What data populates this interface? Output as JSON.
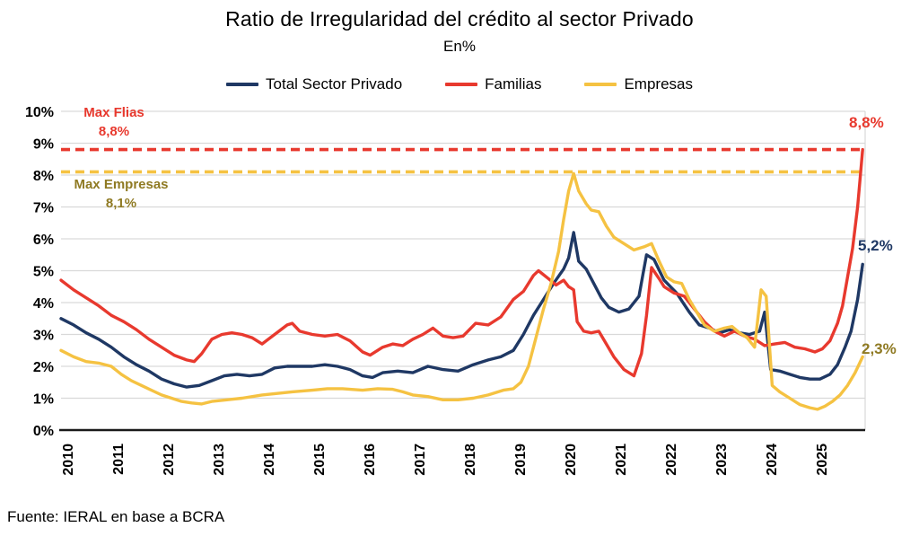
{
  "title": "Ratio de Irregularidad del crédito al sector Privado",
  "subtitle": "En%",
  "source": "Fuente: IERAL en base a BCRA",
  "colors": {
    "total": "#1f3864",
    "familias": "#e8392e",
    "empresas": "#f5c242",
    "empresas_dark": "#8f7a23",
    "grid": "#d9d9d9",
    "axis": "#1a1a1a"
  },
  "legend": [
    {
      "label": "Total Sector Privado",
      "color": "#1f3864"
    },
    {
      "label": "Familias",
      "color": "#e8392e"
    },
    {
      "label": "Empresas",
      "color": "#f5c242"
    }
  ],
  "annotations": {
    "max_flias": {
      "line1": "Max Flias",
      "line2": "8,8%",
      "color": "#e8392e"
    },
    "max_empresas": {
      "line1": "Max Empresas",
      "line2": "8,1%",
      "color": "#8f7a23"
    },
    "end_labels": [
      {
        "text": "8,8%",
        "color": "#e8392e",
        "series": "Familias"
      },
      {
        "text": "5,2%",
        "color": "#1f3864",
        "series": "Total Sector Privado"
      },
      {
        "text": "2,3%",
        "color": "#8f7a23",
        "series": "Empresas"
      }
    ]
  },
  "chart_data": {
    "type": "line",
    "title": "Ratio de Irregularidad del crédito al sector Privado",
    "ylabel": "En%",
    "ylim": [
      0,
      10
    ],
    "y_ticks": [
      "0%",
      "1%",
      "2%",
      "3%",
      "4%",
      "5%",
      "6%",
      "7%",
      "8%",
      "9%",
      "10%"
    ],
    "x_ticks": [
      "2010",
      "2011",
      "2012",
      "2013",
      "2014",
      "2015",
      "2016",
      "2017",
      "2018",
      "2019",
      "2020",
      "2021",
      "2022",
      "2023",
      "2024",
      "2025"
    ],
    "grid": true,
    "legend_position": "top",
    "reference_lines": [
      {
        "name": "Max Flias",
        "value": 8.8,
        "color": "#e8392e",
        "style": "dashed"
      },
      {
        "name": "Max Empresas",
        "value": 8.1,
        "color": "#f5c242",
        "style": "dashed"
      }
    ],
    "series": [
      {
        "name": "Total Sector Privado",
        "color": "#1f3864",
        "points": [
          [
            2010.0,
            3.5
          ],
          [
            2010.25,
            3.3
          ],
          [
            2010.5,
            3.05
          ],
          [
            2010.75,
            2.85
          ],
          [
            2011.0,
            2.6
          ],
          [
            2011.25,
            2.3
          ],
          [
            2011.5,
            2.05
          ],
          [
            2011.75,
            1.85
          ],
          [
            2012.0,
            1.6
          ],
          [
            2012.25,
            1.45
          ],
          [
            2012.5,
            1.35
          ],
          [
            2012.75,
            1.4
          ],
          [
            2013.0,
            1.55
          ],
          [
            2013.25,
            1.7
          ],
          [
            2013.5,
            1.75
          ],
          [
            2013.75,
            1.7
          ],
          [
            2014.0,
            1.75
          ],
          [
            2014.25,
            1.95
          ],
          [
            2014.5,
            2.0
          ],
          [
            2014.75,
            2.0
          ],
          [
            2015.0,
            2.0
          ],
          [
            2015.25,
            2.05
          ],
          [
            2015.5,
            2.0
          ],
          [
            2015.75,
            1.9
          ],
          [
            2016.0,
            1.7
          ],
          [
            2016.2,
            1.65
          ],
          [
            2016.4,
            1.8
          ],
          [
            2016.7,
            1.85
          ],
          [
            2017.0,
            1.8
          ],
          [
            2017.3,
            2.0
          ],
          [
            2017.6,
            1.9
          ],
          [
            2017.9,
            1.85
          ],
          [
            2018.2,
            2.05
          ],
          [
            2018.5,
            2.2
          ],
          [
            2018.75,
            2.3
          ],
          [
            2019.0,
            2.5
          ],
          [
            2019.2,
            3.0
          ],
          [
            2019.4,
            3.6
          ],
          [
            2019.6,
            4.1
          ],
          [
            2019.8,
            4.6
          ],
          [
            2020.0,
            5.05
          ],
          [
            2020.1,
            5.4
          ],
          [
            2020.2,
            6.2
          ],
          [
            2020.3,
            5.3
          ],
          [
            2020.45,
            5.05
          ],
          [
            2020.6,
            4.6
          ],
          [
            2020.75,
            4.15
          ],
          [
            2020.9,
            3.85
          ],
          [
            2021.1,
            3.7
          ],
          [
            2021.3,
            3.8
          ],
          [
            2021.5,
            4.2
          ],
          [
            2021.58,
            4.9
          ],
          [
            2021.65,
            5.5
          ],
          [
            2021.8,
            5.35
          ],
          [
            2022.0,
            4.7
          ],
          [
            2022.25,
            4.3
          ],
          [
            2022.5,
            3.7
          ],
          [
            2022.7,
            3.3
          ],
          [
            2022.9,
            3.2
          ],
          [
            2023.1,
            3.05
          ],
          [
            2023.3,
            3.15
          ],
          [
            2023.5,
            3.05
          ],
          [
            2023.7,
            3.0
          ],
          [
            2023.9,
            3.1
          ],
          [
            2024.0,
            3.7
          ],
          [
            2024.12,
            1.9
          ],
          [
            2024.3,
            1.85
          ],
          [
            2024.5,
            1.75
          ],
          [
            2024.7,
            1.65
          ],
          [
            2024.9,
            1.6
          ],
          [
            2025.1,
            1.6
          ],
          [
            2025.3,
            1.75
          ],
          [
            2025.45,
            2.05
          ],
          [
            2025.6,
            2.6
          ],
          [
            2025.72,
            3.1
          ],
          [
            2025.85,
            4.1
          ],
          [
            2025.95,
            5.2
          ]
        ]
      },
      {
        "name": "Familias",
        "color": "#e8392e",
        "points": [
          [
            2010.0,
            4.7
          ],
          [
            2010.25,
            4.4
          ],
          [
            2010.5,
            4.15
          ],
          [
            2010.75,
            3.9
          ],
          [
            2011.0,
            3.6
          ],
          [
            2011.25,
            3.4
          ],
          [
            2011.5,
            3.15
          ],
          [
            2011.75,
            2.85
          ],
          [
            2012.0,
            2.6
          ],
          [
            2012.25,
            2.35
          ],
          [
            2012.5,
            2.2
          ],
          [
            2012.65,
            2.15
          ],
          [
            2012.8,
            2.4
          ],
          [
            2013.0,
            2.85
          ],
          [
            2013.2,
            3.0
          ],
          [
            2013.4,
            3.05
          ],
          [
            2013.6,
            3.0
          ],
          [
            2013.8,
            2.9
          ],
          [
            2014.0,
            2.7
          ],
          [
            2014.25,
            3.0
          ],
          [
            2014.5,
            3.3
          ],
          [
            2014.6,
            3.35
          ],
          [
            2014.75,
            3.1
          ],
          [
            2015.0,
            3.0
          ],
          [
            2015.25,
            2.95
          ],
          [
            2015.5,
            3.0
          ],
          [
            2015.75,
            2.8
          ],
          [
            2016.0,
            2.45
          ],
          [
            2016.15,
            2.35
          ],
          [
            2016.4,
            2.6
          ],
          [
            2016.6,
            2.7
          ],
          [
            2016.8,
            2.65
          ],
          [
            2017.0,
            2.85
          ],
          [
            2017.2,
            3.0
          ],
          [
            2017.4,
            3.2
          ],
          [
            2017.6,
            2.95
          ],
          [
            2017.8,
            2.9
          ],
          [
            2018.0,
            2.95
          ],
          [
            2018.25,
            3.35
          ],
          [
            2018.5,
            3.3
          ],
          [
            2018.75,
            3.55
          ],
          [
            2019.0,
            4.1
          ],
          [
            2019.2,
            4.35
          ],
          [
            2019.4,
            4.85
          ],
          [
            2019.5,
            5.0
          ],
          [
            2019.7,
            4.75
          ],
          [
            2019.85,
            4.55
          ],
          [
            2020.0,
            4.7
          ],
          [
            2020.1,
            4.5
          ],
          [
            2020.2,
            4.4
          ],
          [
            2020.27,
            3.4
          ],
          [
            2020.4,
            3.1
          ],
          [
            2020.55,
            3.05
          ],
          [
            2020.7,
            3.1
          ],
          [
            2020.85,
            2.7
          ],
          [
            2021.0,
            2.3
          ],
          [
            2021.2,
            1.9
          ],
          [
            2021.4,
            1.7
          ],
          [
            2021.55,
            2.4
          ],
          [
            2021.65,
            3.6
          ],
          [
            2021.75,
            5.1
          ],
          [
            2021.9,
            4.75
          ],
          [
            2022.0,
            4.5
          ],
          [
            2022.2,
            4.3
          ],
          [
            2022.4,
            4.2
          ],
          [
            2022.6,
            3.8
          ],
          [
            2022.8,
            3.4
          ],
          [
            2023.0,
            3.1
          ],
          [
            2023.2,
            2.95
          ],
          [
            2023.4,
            3.1
          ],
          [
            2023.6,
            2.95
          ],
          [
            2023.8,
            2.85
          ],
          [
            2024.0,
            2.65
          ],
          [
            2024.2,
            2.7
          ],
          [
            2024.4,
            2.75
          ],
          [
            2024.6,
            2.6
          ],
          [
            2024.8,
            2.55
          ],
          [
            2025.0,
            2.45
          ],
          [
            2025.15,
            2.55
          ],
          [
            2025.3,
            2.8
          ],
          [
            2025.45,
            3.35
          ],
          [
            2025.55,
            3.9
          ],
          [
            2025.65,
            4.8
          ],
          [
            2025.75,
            5.7
          ],
          [
            2025.85,
            7.0
          ],
          [
            2025.95,
            8.8
          ]
        ]
      },
      {
        "name": "Empresas",
        "color": "#f5c242",
        "points": [
          [
            2010.0,
            2.5
          ],
          [
            2010.25,
            2.3
          ],
          [
            2010.5,
            2.15
          ],
          [
            2010.75,
            2.1
          ],
          [
            2011.0,
            2.0
          ],
          [
            2011.2,
            1.75
          ],
          [
            2011.4,
            1.55
          ],
          [
            2011.6,
            1.4
          ],
          [
            2011.8,
            1.25
          ],
          [
            2012.0,
            1.1
          ],
          [
            2012.2,
            1.0
          ],
          [
            2012.4,
            0.9
          ],
          [
            2012.6,
            0.85
          ],
          [
            2012.8,
            0.82
          ],
          [
            2013.0,
            0.9
          ],
          [
            2013.3,
            0.95
          ],
          [
            2013.6,
            1.0
          ],
          [
            2014.0,
            1.1
          ],
          [
            2014.3,
            1.15
          ],
          [
            2014.6,
            1.2
          ],
          [
            2015.0,
            1.25
          ],
          [
            2015.3,
            1.3
          ],
          [
            2015.6,
            1.3
          ],
          [
            2016.0,
            1.25
          ],
          [
            2016.3,
            1.3
          ],
          [
            2016.6,
            1.28
          ],
          [
            2016.8,
            1.2
          ],
          [
            2017.0,
            1.1
          ],
          [
            2017.3,
            1.05
          ],
          [
            2017.6,
            0.95
          ],
          [
            2017.9,
            0.95
          ],
          [
            2018.2,
            1.0
          ],
          [
            2018.5,
            1.1
          ],
          [
            2018.8,
            1.25
          ],
          [
            2019.0,
            1.3
          ],
          [
            2019.15,
            1.5
          ],
          [
            2019.3,
            2.0
          ],
          [
            2019.45,
            2.9
          ],
          [
            2019.6,
            3.8
          ],
          [
            2019.75,
            4.6
          ],
          [
            2019.9,
            5.6
          ],
          [
            2020.0,
            6.6
          ],
          [
            2020.1,
            7.5
          ],
          [
            2020.2,
            8.05
          ],
          [
            2020.3,
            7.5
          ],
          [
            2020.45,
            7.1
          ],
          [
            2020.55,
            6.9
          ],
          [
            2020.7,
            6.85
          ],
          [
            2020.85,
            6.4
          ],
          [
            2021.0,
            6.05
          ],
          [
            2021.2,
            5.85
          ],
          [
            2021.4,
            5.65
          ],
          [
            2021.6,
            5.75
          ],
          [
            2021.75,
            5.85
          ],
          [
            2021.9,
            5.3
          ],
          [
            2022.05,
            4.8
          ],
          [
            2022.2,
            4.65
          ],
          [
            2022.35,
            4.6
          ],
          [
            2022.5,
            4.1
          ],
          [
            2022.65,
            3.7
          ],
          [
            2022.8,
            3.3
          ],
          [
            2023.0,
            3.1
          ],
          [
            2023.2,
            3.2
          ],
          [
            2023.35,
            3.25
          ],
          [
            2023.5,
            3.05
          ],
          [
            2023.65,
            2.9
          ],
          [
            2023.8,
            2.6
          ],
          [
            2023.93,
            4.4
          ],
          [
            2024.03,
            4.2
          ],
          [
            2024.15,
            1.4
          ],
          [
            2024.3,
            1.2
          ],
          [
            2024.5,
            1.0
          ],
          [
            2024.7,
            0.8
          ],
          [
            2024.9,
            0.7
          ],
          [
            2025.05,
            0.65
          ],
          [
            2025.2,
            0.75
          ],
          [
            2025.35,
            0.9
          ],
          [
            2025.5,
            1.1
          ],
          [
            2025.65,
            1.4
          ],
          [
            2025.8,
            1.8
          ],
          [
            2025.95,
            2.3
          ]
        ]
      }
    ]
  }
}
